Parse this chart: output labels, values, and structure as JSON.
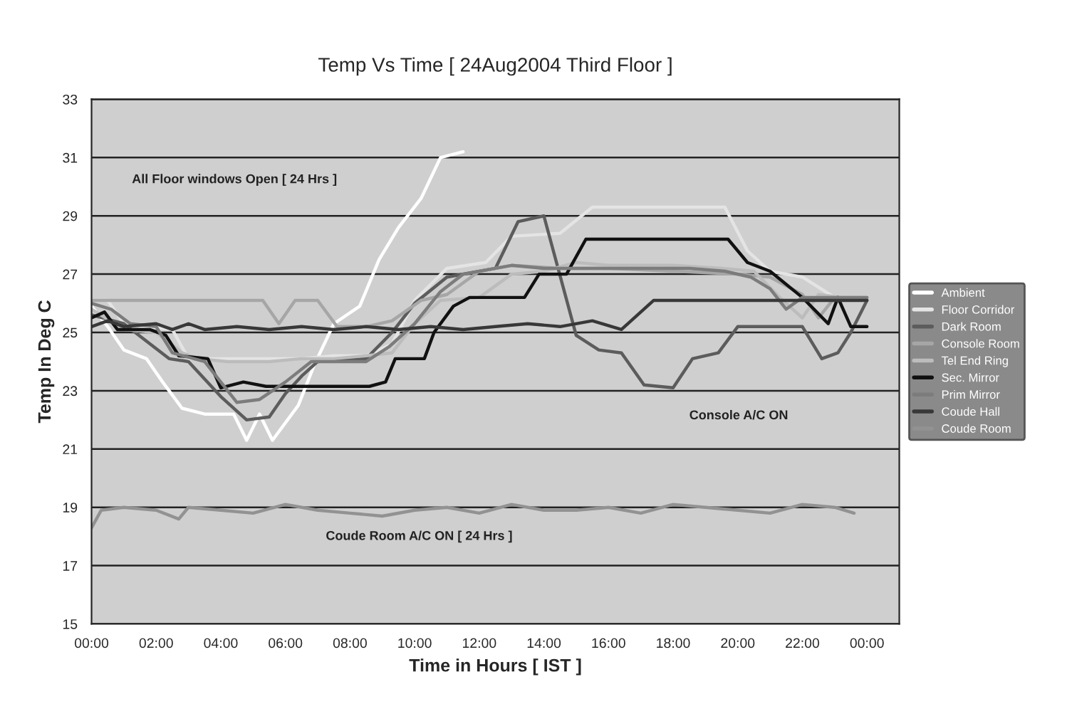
{
  "chart_data": {
    "type": "line",
    "title": "Temp Vs Time [ 24Aug2004 Third Floor ]",
    "xlabel": "Time in Hours [ IST ]",
    "ylabel": "Temp In Deg C",
    "xlim": [
      0,
      25
    ],
    "xticks": [
      {
        "value": 0,
        "label": "00:00"
      },
      {
        "value": 2,
        "label": "02:00"
      },
      {
        "value": 4,
        "label": "04:00"
      },
      {
        "value": 6,
        "label": "06:00"
      },
      {
        "value": 8,
        "label": "08:00"
      },
      {
        "value": 10,
        "label": "10:00"
      },
      {
        "value": 12,
        "label": "12:00"
      },
      {
        "value": 14,
        "label": "14:00"
      },
      {
        "value": 16,
        "label": "16:00"
      },
      {
        "value": 18,
        "label": "18:00"
      },
      {
        "value": 20,
        "label": "20:00"
      },
      {
        "value": 22,
        "label": "22:00"
      },
      {
        "value": 24,
        "label": "00:00"
      }
    ],
    "ylim": [
      15,
      33
    ],
    "yticks": [
      15,
      17,
      19,
      21,
      23,
      25,
      27,
      29,
      31,
      33
    ],
    "grid": "y",
    "legend": "right",
    "series": [
      {
        "name": "Ambient",
        "color": "#ffffff",
        "x": [
          0,
          0.5,
          1,
          1.7,
          2.2,
          2.8,
          3.5,
          4.4,
          4.8,
          5.2,
          5.6,
          6.4,
          6.9,
          7.5,
          8.3,
          8.9,
          9.5,
          10.2,
          10.8,
          11.5
        ],
        "values": [
          25.9,
          25.2,
          24.4,
          24.1,
          23.3,
          22.4,
          22.2,
          22.2,
          21.3,
          22.2,
          21.3,
          22.5,
          23.9,
          25.3,
          25.9,
          27.5,
          28.6,
          29.6,
          31.0,
          31.2
        ]
      },
      {
        "name": "Floor Corridor",
        "color": "#e4e4e4",
        "x": [
          0,
          0.5,
          1,
          2.5,
          3,
          4.5,
          5.5,
          6.5,
          7.5,
          8.5,
          9.3,
          10,
          11,
          12.2,
          13,
          14.5,
          15.5,
          19.6,
          20.3,
          21,
          22,
          23,
          24
        ],
        "values": [
          26.1,
          26.1,
          25.3,
          25.1,
          24.1,
          24.1,
          24.1,
          24.1,
          24.2,
          24.2,
          24.6,
          26.1,
          27.2,
          27.4,
          28.3,
          28.4,
          29.3,
          29.3,
          27.8,
          27.1,
          26.9,
          26.2,
          26.2
        ]
      },
      {
        "name": "Dark Room",
        "color": "#5c5c5c",
        "x": [
          0,
          1,
          2.4,
          3,
          4,
          4.8,
          5.5,
          6,
          6.5,
          7,
          8.5,
          9.3,
          10,
          11,
          12.5,
          13.2,
          14,
          15,
          15.7,
          16.4,
          17.1,
          18,
          18.6,
          19.4,
          20,
          22,
          22.6,
          23.1,
          23.5,
          24
        ],
        "values": [
          25.6,
          25.3,
          24.1,
          24.0,
          22.8,
          22.0,
          22.1,
          22.9,
          23.5,
          24.0,
          24.1,
          25.0,
          26.0,
          26.9,
          27.2,
          28.8,
          29.0,
          24.9,
          24.4,
          24.3,
          23.2,
          23.1,
          24.1,
          24.3,
          25.2,
          25.2,
          24.1,
          24.3,
          25.0,
          26.1
        ]
      },
      {
        "name": "Console Room",
        "color": "#a6a6a6",
        "x": [
          0,
          1.5,
          5.3,
          5.8,
          6.3,
          7,
          7.6,
          8.5,
          9.3,
          10.2,
          11,
          12,
          13,
          14.5,
          16,
          18,
          20,
          21,
          22,
          22.5,
          23,
          24
        ],
        "values": [
          26.1,
          26.1,
          26.1,
          25.3,
          26.1,
          26.1,
          25.2,
          25.2,
          25.4,
          26.1,
          26.3,
          27.1,
          27.3,
          27.2,
          27.2,
          27.1,
          27.0,
          26.9,
          26.3,
          25.5,
          26.2,
          26.2
        ]
      },
      {
        "name": "Tel End Ring",
        "color": "#bcbcbc",
        "x": [
          0,
          1,
          2,
          2.8,
          3.3,
          4.2,
          5.5,
          6.5,
          7.5,
          8.5,
          9.3,
          10,
          10.8,
          12,
          13,
          14,
          15,
          16,
          18,
          19.5,
          20.5,
          21.3,
          22,
          22.5,
          23.2,
          24
        ],
        "values": [
          25.8,
          25.1,
          25.0,
          24.3,
          24.1,
          24.0,
          24.0,
          24.1,
          24.1,
          24.2,
          24.3,
          25.3,
          26.1,
          26.2,
          27.0,
          27.1,
          27.4,
          27.3,
          27.3,
          27.2,
          27.1,
          26.2,
          25.5,
          26.3,
          26.2,
          26.2
        ]
      },
      {
        "name": "Sec. Mirror",
        "color": "#111111",
        "x": [
          0,
          0.4,
          0.8,
          1.8,
          2.3,
          2.7,
          3.6,
          4.0,
          4.7,
          5.4,
          8.6,
          9.1,
          9.4,
          10.3,
          10.6,
          11.2,
          11.7,
          13.4,
          13.85,
          14.7,
          15.3,
          19.7,
          20.3,
          21.0,
          22.0,
          22.8,
          23.1,
          23.5,
          24
        ],
        "values": [
          25.5,
          25.7,
          25.1,
          25.1,
          24.9,
          24.2,
          24.1,
          23.1,
          23.3,
          23.15,
          23.15,
          23.3,
          24.1,
          24.1,
          25.0,
          25.9,
          26.2,
          26.2,
          27.0,
          27.0,
          28.2,
          28.2,
          27.4,
          27.1,
          26.2,
          25.3,
          26.2,
          25.2,
          25.2
        ]
      },
      {
        "name": "Prim Mirror",
        "color": "#7c7c7c",
        "x": [
          0,
          0.6,
          1.2,
          2,
          2.5,
          3.5,
          4,
          4.5,
          5.2,
          6,
          6.8,
          8.5,
          9.2,
          10,
          10.8,
          11.5,
          13,
          14,
          15.5,
          18.5,
          19.6,
          20.4,
          21,
          21.5,
          22,
          24
        ],
        "values": [
          26.0,
          25.8,
          25.3,
          25.2,
          24.3,
          24.0,
          23.3,
          22.6,
          22.7,
          23.3,
          24.0,
          24.0,
          24.5,
          25.3,
          26.4,
          27.0,
          27.3,
          27.2,
          27.2,
          27.2,
          27.1,
          26.9,
          26.5,
          25.8,
          26.2,
          26.2
        ]
      },
      {
        "name": "Coude Hall",
        "color": "#383838",
        "x": [
          0,
          0.5,
          1,
          2,
          2.5,
          3,
          3.5,
          4.5,
          5.5,
          6.5,
          7.5,
          8.5,
          9.5,
          10.5,
          11.5,
          12.5,
          13.5,
          14.5,
          15.5,
          16.4,
          17.4,
          20,
          22,
          24
        ],
        "values": [
          25.2,
          25.4,
          25.2,
          25.3,
          25.1,
          25.3,
          25.1,
          25.2,
          25.1,
          25.2,
          25.1,
          25.2,
          25.1,
          25.2,
          25.1,
          25.2,
          25.3,
          25.2,
          25.4,
          25.1,
          26.1,
          26.1,
          26.1,
          26.1
        ]
      },
      {
        "name": "Coude Room",
        "color": "#929292",
        "x": [
          0,
          0.3,
          1,
          2,
          2.7,
          3,
          4,
          5,
          6,
          7,
          8,
          9,
          10,
          11,
          12,
          13,
          14,
          15,
          16,
          17,
          18,
          19,
          20,
          21,
          22,
          23,
          23.6
        ],
        "values": [
          18.3,
          18.9,
          19.0,
          18.9,
          18.6,
          19.0,
          18.9,
          18.8,
          19.1,
          18.9,
          18.8,
          18.7,
          18.9,
          19.0,
          18.8,
          19.1,
          18.9,
          18.9,
          19.0,
          18.8,
          19.1,
          19.0,
          18.9,
          18.8,
          19.1,
          19.0,
          18.8
        ]
      }
    ],
    "annotations": [
      "All Floor windows Open [ 24 Hrs ]",
      "Console A/C ON",
      "Coude Room A/C ON [ 24 Hrs ]"
    ]
  }
}
